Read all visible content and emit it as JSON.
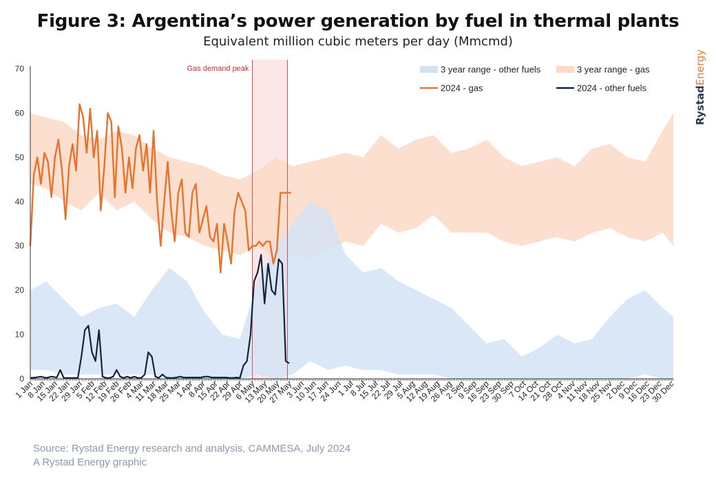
{
  "header": {
    "title": "Figure 3: Argentina’s power generation by fuel in thermal plants",
    "subtitle": "Equivalent million cubic meters per day (Mmcmd)"
  },
  "brand": {
    "part1": "Rystad",
    "part2": "Energy"
  },
  "footer": {
    "source": "Source: Rystad Energy research and analysis, CAMMESA, July 2024",
    "credit": "A Rystad Energy graphic"
  },
  "colors": {
    "gas_line": "#e8712c",
    "other_line": "#14233d",
    "gas_range": "#fbd9c6",
    "other_range": "#d4e3f4",
    "peak_band": "#fbe3e3",
    "peak_line": "#c9302c"
  },
  "chart_data": {
    "type": "area",
    "title": "Figure 3: Argentina’s power generation by fuel in thermal plants",
    "subtitle": "Equivalent million cubic meters per day (Mmcmd)",
    "ylim": [
      0,
      70
    ],
    "yticks": [
      0,
      10,
      20,
      30,
      40,
      50,
      60,
      70
    ],
    "xlim": [
      1,
      366
    ],
    "grid": false,
    "legend_position": "top-right",
    "xtick_labels": [
      "1 Jan",
      "8 Jan",
      "15 Jan",
      "22 Jan",
      "29 Jan",
      "5 Feb",
      "12 Feb",
      "19 Feb",
      "26 Feb",
      "4 Mar",
      "11 Mar",
      "18 Mar",
      "25 Mar",
      "1 Apr",
      "8 Apr",
      "15 Apr",
      "22 Apr",
      "29 Apr",
      "6 May",
      "13 May",
      "20 May",
      "27 May",
      "3 Jun",
      "10 Jun",
      "17 Jun",
      "24 Jun",
      "1 Jul",
      "8 Jul",
      "15 Jul",
      "22 Jul",
      "29 Jul",
      "5 Aug",
      "12 Aug",
      "19 Aug",
      "26 Aug",
      "2 Sep",
      "9 Sep",
      "16 Sep",
      "23 Sep",
      "30 Sep",
      "7 Oct",
      "14 Oct",
      "21 Oct",
      "28 Oct",
      "4 Nov",
      "11 Nov",
      "18 Nov",
      "25 Nov",
      "2 Dec",
      "9 Dec",
      "16 Dec",
      "23 Dec",
      "30 Dec"
    ],
    "annotation": {
      "label": "Gas demand peak",
      "x_start": 127,
      "x_end": 147
    },
    "legend": [
      {
        "label": "3 year range - other fuels",
        "style": "area",
        "series": "other_range"
      },
      {
        "label": "3 year range - gas",
        "style": "area",
        "series": "gas_range"
      },
      {
        "label": "2024 - gas",
        "style": "line",
        "series": "gas_2024"
      },
      {
        "label": "2024 - other fuels",
        "style": "line",
        "series": "other_2024"
      }
    ],
    "series": [
      {
        "name": "3 year range - gas",
        "key": "gas_range",
        "type": "range",
        "x": [
          1,
          10,
          20,
          30,
          40,
          50,
          60,
          70,
          80,
          90,
          100,
          110,
          120,
          130,
          140,
          150,
          160,
          170,
          180,
          190,
          200,
          210,
          220,
          230,
          240,
          250,
          260,
          270,
          280,
          290,
          300,
          310,
          320,
          330,
          340,
          350,
          360,
          366
        ],
        "low": [
          44,
          43,
          40,
          38,
          42,
          38,
          40,
          36,
          33,
          32,
          30,
          29,
          28,
          30,
          27,
          28,
          27,
          29,
          31,
          30,
          35,
          33,
          34,
          37,
          33,
          33,
          33,
          31,
          30,
          31,
          32,
          31,
          33,
          34,
          32,
          31,
          33,
          30
        ],
        "high": [
          60,
          59,
          58,
          55,
          54,
          56,
          55,
          52,
          50,
          49,
          48,
          46,
          45,
          47,
          50,
          48,
          49,
          50,
          51,
          50,
          55,
          52,
          54,
          55,
          51,
          52,
          54,
          50,
          48,
          49,
          50,
          48,
          52,
          53,
          50,
          49,
          56,
          60
        ]
      },
      {
        "name": "3 year range - other fuels",
        "key": "other_range",
        "type": "range",
        "x": [
          1,
          10,
          20,
          30,
          40,
          50,
          60,
          70,
          80,
          90,
          100,
          110,
          120,
          130,
          140,
          150,
          160,
          170,
          180,
          190,
          200,
          210,
          220,
          230,
          240,
          250,
          260,
          270,
          280,
          290,
          300,
          310,
          320,
          330,
          340,
          350,
          360,
          366
        ],
        "low": [
          2,
          2,
          1,
          1,
          1,
          1,
          1,
          1,
          0,
          0,
          0,
          0,
          0,
          1,
          0,
          1,
          4,
          2,
          3,
          2,
          2,
          1,
          1,
          1,
          0,
          0,
          0,
          0,
          0,
          0,
          0,
          0,
          0,
          0,
          0,
          1,
          0,
          0
        ],
        "high": [
          20,
          22,
          18,
          14,
          16,
          17,
          14,
          20,
          25,
          22,
          15,
          10,
          9,
          22,
          30,
          35,
          40,
          38,
          28,
          24,
          25,
          22,
          20,
          18,
          16,
          12,
          8,
          9,
          5,
          7,
          10,
          8,
          9,
          14,
          18,
          20,
          16,
          14
        ]
      },
      {
        "name": "2024 - gas",
        "key": "gas_2024",
        "type": "line",
        "x": [
          1,
          3,
          5,
          7,
          9,
          11,
          13,
          15,
          17,
          19,
          21,
          23,
          25,
          27,
          29,
          31,
          33,
          35,
          37,
          39,
          41,
          43,
          45,
          47,
          49,
          51,
          53,
          55,
          57,
          59,
          61,
          63,
          65,
          67,
          69,
          71,
          73,
          75,
          77,
          79,
          81,
          83,
          85,
          87,
          89,
          91,
          93,
          95,
          97,
          99,
          101,
          103,
          105,
          107,
          109,
          111,
          113,
          115,
          117,
          119,
          121,
          123,
          125,
          127,
          129,
          131,
          133,
          135,
          137,
          139,
          141,
          143,
          145,
          147,
          149
        ],
        "values": [
          30,
          46,
          50,
          44,
          51,
          49,
          41,
          50,
          54,
          47,
          36,
          48,
          53,
          47,
          62,
          59,
          51,
          61,
          50,
          56,
          38,
          48,
          60,
          58,
          41,
          57,
          52,
          42,
          50,
          43,
          52,
          55,
          47,
          53,
          42,
          56,
          40,
          30,
          40,
          49,
          38,
          31,
          42,
          45,
          33,
          32,
          42,
          44,
          33,
          36,
          39,
          32,
          31,
          35,
          24,
          35,
          31,
          26,
          38,
          42,
          40,
          38,
          29,
          30,
          30,
          31,
          30,
          31,
          31,
          26,
          29,
          42,
          42,
          42,
          42
        ]
      },
      {
        "name": "2024 - other fuels",
        "key": "other_2024",
        "type": "line",
        "x": [
          1,
          4,
          7,
          10,
          13,
          16,
          18,
          20,
          22,
          24,
          26,
          28,
          30,
          32,
          34,
          36,
          38,
          40,
          42,
          44,
          46,
          48,
          50,
          52,
          54,
          56,
          58,
          60,
          62,
          64,
          66,
          68,
          70,
          72,
          74,
          76,
          78,
          80,
          82,
          84,
          86,
          88,
          90,
          92,
          94,
          96,
          98,
          100,
          102,
          104,
          106,
          108,
          110,
          112,
          114,
          116,
          118,
          120,
          122,
          124,
          126,
          128,
          130,
          132,
          134,
          136,
          138,
          140,
          142,
          144,
          146,
          148
        ],
        "values": [
          0.2,
          0.3,
          0.5,
          0.2,
          0.5,
          0.3,
          2,
          0.2,
          0.2,
          0.2,
          0.2,
          0.2,
          5,
          11,
          12,
          6,
          4,
          11,
          0.5,
          0.2,
          0.2,
          0.5,
          2,
          0.5,
          0.2,
          0.5,
          0.2,
          0.5,
          0.2,
          0.2,
          1,
          6,
          5,
          0.5,
          0.2,
          1,
          0.3,
          0.2,
          0.2,
          0.3,
          0.5,
          0.3,
          0.3,
          0.3,
          0.3,
          0.3,
          0.3,
          0.5,
          0.5,
          0.3,
          0.3,
          0.3,
          0.3,
          0.3,
          0.2,
          0.2,
          0.3,
          0.2,
          3,
          4,
          10,
          22,
          24,
          28,
          17,
          26,
          20,
          19,
          27,
          26,
          4,
          3.5
        ]
      }
    ]
  }
}
